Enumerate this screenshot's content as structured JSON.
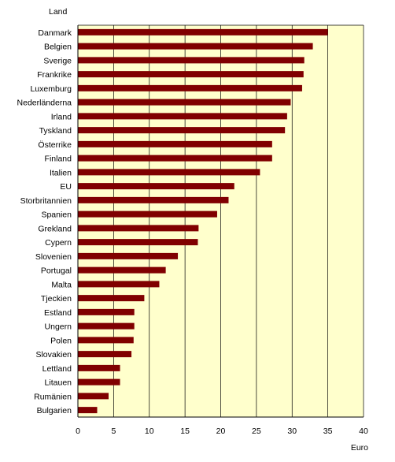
{
  "chart_data": {
    "type": "bar",
    "orientation": "horizontal",
    "ylabel": "Land",
    "xlabel": "Euro",
    "xlim": [
      0,
      40
    ],
    "xticks": [
      0,
      5,
      10,
      15,
      20,
      25,
      30,
      35,
      40
    ],
    "grid": true,
    "colors": {
      "bar": "#800000",
      "plot_bg": "#FFFFCC",
      "grid": "#000000"
    },
    "categories": [
      "Danmark",
      "Belgien",
      "Sverige",
      "Frankrike",
      "Luxemburg",
      "Nederländerna",
      "Irland",
      "Tyskland",
      "Österrike",
      "Finland",
      "Italien",
      "EU",
      "Storbritannien",
      "Spanien",
      "Grekland",
      "Cypern",
      "Slovenien",
      "Portugal",
      "Malta",
      "Tjeckien",
      "Estland",
      "Ungern",
      "Polen",
      "Slovakien",
      "Lettland",
      "Litauen",
      "Rumänien",
      "Bulgarien"
    ],
    "values": [
      35.0,
      32.9,
      31.7,
      31.6,
      31.4,
      29.8,
      29.3,
      29.0,
      27.2,
      27.2,
      25.5,
      21.9,
      21.1,
      19.5,
      16.9,
      16.8,
      14.0,
      12.3,
      11.4,
      9.3,
      7.9,
      7.9,
      7.8,
      7.5,
      5.9,
      5.9,
      4.3,
      2.7
    ]
  }
}
